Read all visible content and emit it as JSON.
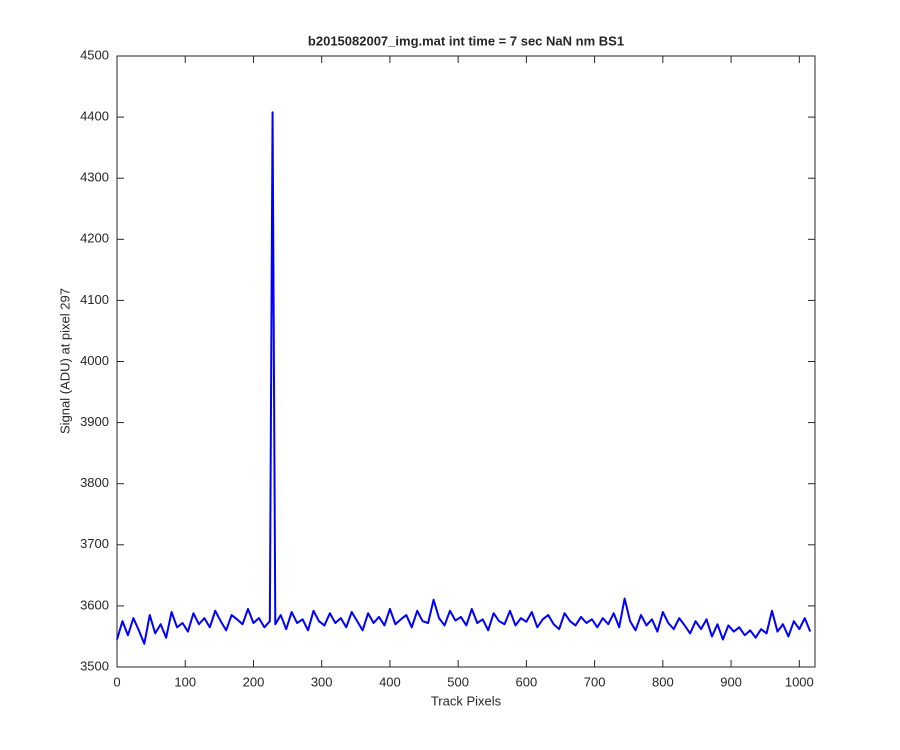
{
  "chart_data": {
    "type": "line",
    "title": "b2015082007_img.mat int time = 7 sec  NaN nm BS1",
    "xlabel": "Track Pixels",
    "ylabel": "Signal (ADU) at pixel 297",
    "color": "#0000ff",
    "xlim": [
      0,
      1023
    ],
    "ylim": [
      3500,
      4500
    ],
    "xticks": [
      0,
      100,
      200,
      300,
      400,
      500,
      600,
      700,
      800,
      900,
      1000
    ],
    "yticks": [
      3500,
      3600,
      3700,
      3800,
      3900,
      4000,
      4100,
      4200,
      4300,
      4400,
      4500
    ],
    "grid": false,
    "x": [
      0,
      8,
      16,
      24,
      32,
      40,
      48,
      56,
      64,
      72,
      80,
      88,
      96,
      104,
      112,
      120,
      128,
      136,
      144,
      152,
      160,
      168,
      176,
      184,
      192,
      200,
      208,
      216,
      224,
      228,
      232,
      240,
      248,
      256,
      264,
      272,
      280,
      288,
      296,
      304,
      312,
      320,
      328,
      336,
      344,
      352,
      360,
      368,
      376,
      384,
      392,
      400,
      408,
      416,
      424,
      432,
      440,
      448,
      456,
      464,
      472,
      480,
      488,
      496,
      504,
      512,
      520,
      528,
      536,
      544,
      552,
      560,
      568,
      576,
      584,
      592,
      600,
      608,
      616,
      624,
      632,
      640,
      648,
      656,
      664,
      672,
      680,
      688,
      696,
      704,
      712,
      720,
      728,
      736,
      744,
      752,
      760,
      768,
      776,
      784,
      792,
      800,
      808,
      816,
      824,
      832,
      840,
      848,
      856,
      864,
      872,
      880,
      888,
      896,
      904,
      912,
      920,
      928,
      936,
      944,
      952,
      960,
      968,
      976,
      984,
      992,
      1000,
      1008,
      1016
    ],
    "values": [
      3545,
      3575,
      3552,
      3580,
      3560,
      3538,
      3585,
      3555,
      3570,
      3548,
      3590,
      3565,
      3572,
      3558,
      3588,
      3570,
      3580,
      3565,
      3592,
      3575,
      3560,
      3585,
      3578,
      3570,
      3595,
      3572,
      3580,
      3565,
      3575,
      4408,
      3570,
      3585,
      3562,
      3590,
      3572,
      3578,
      3560,
      3592,
      3575,
      3568,
      3588,
      3572,
      3580,
      3565,
      3590,
      3575,
      3560,
      3588,
      3572,
      3582,
      3568,
      3595,
      3570,
      3578,
      3585,
      3565,
      3592,
      3575,
      3572,
      3610,
      3580,
      3568,
      3592,
      3576,
      3582,
      3568,
      3595,
      3572,
      3578,
      3560,
      3588,
      3575,
      3570,
      3592,
      3568,
      3580,
      3574,
      3590,
      3565,
      3578,
      3585,
      3570,
      3562,
      3588,
      3575,
      3568,
      3582,
      3572,
      3578,
      3565,
      3580,
      3570,
      3588,
      3565,
      3612,
      3575,
      3560,
      3585,
      3568,
      3578,
      3558,
      3590,
      3572,
      3562,
      3580,
      3568,
      3555,
      3575,
      3562,
      3578,
      3550,
      3570,
      3545,
      3568,
      3558,
      3565,
      3552,
      3560,
      3548,
      3562,
      3555,
      3592,
      3558,
      3570,
      3550,
      3575,
      3562,
      3580,
      3558
    ]
  }
}
